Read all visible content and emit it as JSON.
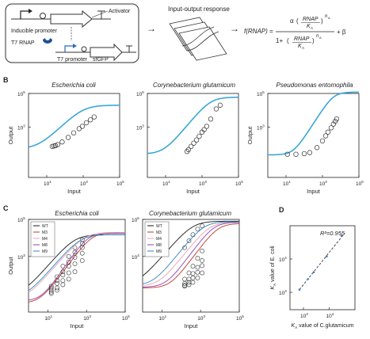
{
  "panel_a": {
    "circuit": {
      "activator_label": "Activator",
      "inducible_promoter_label": "Inducible promoter",
      "t7_rnap_label": "T7 RNAP",
      "t7_promoter_label": "T7 promoter",
      "reporter_label": "sfGFP"
    },
    "response_label": "Input-output response",
    "arrow_glyph": "→",
    "equation": {
      "lhs": "f(RNAP) =",
      "alpha": "α",
      "rnap": "RNAP",
      "ka": "K",
      "ka_sub": "A",
      "exp": "n",
      "exp_sub": "A",
      "open_paren": "(",
      "close_paren": ")",
      "one_plus": "1+",
      "plus_beta": "+ β"
    }
  },
  "colors": {
    "fit_line": "#3aa7d8",
    "circle": "#333333",
    "axis": "#222222",
    "dashed": "#333333",
    "scatter_point": "#3a7fd0",
    "promoter_blue": "#2b6cb0",
    "rnap_blue": "#1f4f9c"
  },
  "chart_data": [
    {
      "panel": "B1",
      "type": "scatter",
      "letter": "B",
      "title": "Escherichia coli",
      "xlabel": "Input",
      "ylabel": "Output",
      "xscale": "log",
      "yscale": "log",
      "xlim": [
        1,
        100000
      ],
      "ylim": [
        1,
        100000
      ],
      "x_ticks": [
        {
          "base": "10",
          "exp": "1"
        },
        {
          "base": "10",
          "exp": "3"
        },
        {
          "base": "10",
          "exp": "5"
        }
      ],
      "y_ticks": [
        {
          "base": "10",
          "exp": "3"
        },
        {
          "base": "10",
          "exp": "5"
        }
      ],
      "fit": {
        "alpha": 20000,
        "K": 1000,
        "n": 1.05,
        "beta": 50
      },
      "points": [
        [
          20,
          70
        ],
        [
          25,
          75
        ],
        [
          30,
          78
        ],
        [
          40,
          90
        ],
        [
          70,
          130
        ],
        [
          150,
          240
        ],
        [
          300,
          450
        ],
        [
          600,
          800
        ],
        [
          900,
          1100
        ],
        [
          1500,
          1800
        ],
        [
          2500,
          2700
        ],
        [
          4000,
          4000
        ]
      ]
    },
    {
      "panel": "B2",
      "type": "scatter",
      "title": "Corynebacterium glutamicum",
      "xlabel": "Input",
      "ylabel": "",
      "xscale": "log",
      "yscale": "log",
      "xlim": [
        1,
        100000
      ],
      "ylim": [
        1,
        100000
      ],
      "x_ticks": [
        {
          "base": "10",
          "exp": "1"
        },
        {
          "base": "10",
          "exp": "3"
        },
        {
          "base": "10",
          "exp": "5"
        }
      ],
      "y_ticks": [
        {
          "base": "10",
          "exp": "3"
        },
        {
          "base": "10",
          "exp": "5"
        }
      ],
      "fit": {
        "alpha": 60000,
        "K": 3000,
        "n": 1.3,
        "beta": 25
      },
      "points": [
        [
          150,
          35
        ],
        [
          180,
          45
        ],
        [
          250,
          70
        ],
        [
          350,
          110
        ],
        [
          500,
          170
        ],
        [
          700,
          280
        ],
        [
          1000,
          500
        ],
        [
          1300,
          700
        ],
        [
          1800,
          1100
        ],
        [
          3000,
          3000
        ],
        [
          6000,
          12000
        ],
        [
          10000,
          20000
        ]
      ]
    },
    {
      "panel": "B3",
      "type": "scatter",
      "title": "Pseudomonas entomophila",
      "xlabel": "Input",
      "ylabel": "Output",
      "xscale": "log",
      "yscale": "log",
      "xlim": [
        1,
        100000
      ],
      "ylim": [
        1,
        100000
      ],
      "x_ticks": [
        {
          "base": "10",
          "exp": "1"
        },
        {
          "base": "10",
          "exp": "3"
        },
        {
          "base": "10",
          "exp": "5"
        }
      ],
      "y_ticks": [
        {
          "base": "10",
          "exp": "3"
        },
        {
          "base": "10",
          "exp": "5"
        }
      ],
      "fit": {
        "alpha": 120000,
        "K": 4000,
        "n": 1.7,
        "beta": 22
      },
      "points": [
        [
          12,
          24
        ],
        [
          35,
          24
        ],
        [
          100,
          26
        ],
        [
          200,
          30
        ],
        [
          500,
          60
        ],
        [
          1000,
          150
        ],
        [
          1500,
          300
        ],
        [
          2000,
          500
        ],
        [
          3000,
          900
        ],
        [
          4000,
          1500
        ],
        [
          5000,
          2200
        ],
        [
          6000,
          3000
        ]
      ]
    },
    {
      "panel": "C1",
      "type": "scatter",
      "letter": "C",
      "title": "Escherichia coli",
      "xlabel": "Input",
      "ylabel": "Output",
      "xscale": "log",
      "yscale": "log",
      "xlim": [
        1,
        100000
      ],
      "ylim": [
        1,
        100000
      ],
      "x_ticks": [
        {
          "base": "10",
          "exp": "1"
        },
        {
          "base": "10",
          "exp": "3"
        },
        {
          "base": "10",
          "exp": "5"
        }
      ],
      "y_ticks": [
        {
          "base": "10",
          "exp": "3"
        },
        {
          "base": "10",
          "exp": "5"
        }
      ],
      "legend": [
        "WT",
        "M3",
        "M4",
        "M8",
        "M9"
      ],
      "series": [
        {
          "name": "WT",
          "color": "#1a1a1a",
          "fit": {
            "alpha": 15000,
            "K": 250,
            "n": 1.2,
            "beta": 8
          },
          "points": [
            [
              15,
              25
            ],
            [
              30,
              80
            ],
            [
              60,
              300
            ],
            [
              120,
              1000
            ],
            [
              250,
              3000
            ],
            [
              600,
              8000
            ]
          ]
        },
        {
          "name": "M3",
          "color": "#c0392b",
          "fit": {
            "alpha": 20000,
            "K": 2000,
            "n": 1.4,
            "beta": 3
          },
          "points": [
            [
              15,
              10
            ],
            [
              30,
              15
            ],
            [
              60,
              30
            ],
            [
              120,
              60
            ],
            [
              250,
              150
            ],
            [
              600,
              600
            ]
          ]
        },
        {
          "name": "M4",
          "color": "#e8a1b3",
          "fit": {
            "alpha": 20000,
            "K": 800,
            "n": 1.2,
            "beta": 5
          },
          "points": [
            [
              15,
              15
            ],
            [
              30,
              35
            ],
            [
              60,
              100
            ],
            [
              120,
              300
            ],
            [
              250,
              900
            ],
            [
              600,
              3000
            ]
          ]
        },
        {
          "name": "M8",
          "color": "#8e44ad",
          "fit": {
            "alpha": 18000,
            "K": 1200,
            "n": 1.5,
            "beta": 4
          },
          "points": [
            [
              15,
              12
            ],
            [
              30,
              20
            ],
            [
              60,
              50
            ],
            [
              120,
              130
            ],
            [
              250,
              400
            ],
            [
              600,
              1500
            ]
          ]
        },
        {
          "name": "M9",
          "color": "#2e86c1",
          "fit": {
            "alpha": 15000,
            "K": 500,
            "n": 1.2,
            "beta": 6
          },
          "points": [
            [
              15,
              20
            ],
            [
              30,
              50
            ],
            [
              60,
              150
            ],
            [
              120,
              500
            ],
            [
              250,
              1700
            ],
            [
              600,
              5000
            ]
          ]
        }
      ]
    },
    {
      "panel": "C2",
      "type": "scatter",
      "title": "Corynebacterium glutamicum",
      "xlabel": "Input",
      "ylabel": "",
      "xscale": "log",
      "yscale": "log",
      "xlim": [
        1,
        100000
      ],
      "ylim": [
        1,
        100000
      ],
      "x_ticks": [
        {
          "base": "10",
          "exp": "1"
        },
        {
          "base": "10",
          "exp": "3"
        },
        {
          "base": "10",
          "exp": "5"
        }
      ],
      "y_ticks": [
        {
          "base": "10",
          "exp": "3"
        },
        {
          "base": "10",
          "exp": "5"
        }
      ],
      "legend": [
        "WT",
        "M3",
        "M4",
        "M8",
        "M9"
      ],
      "series": [
        {
          "name": "WT",
          "color": "#1a1a1a",
          "fit": {
            "alpha": 80000,
            "K": 400,
            "n": 1.2,
            "beta": 30
          },
          "points": [
            [
              150,
              3000
            ],
            [
              250,
              7000
            ],
            [
              400,
              15000
            ],
            [
              700,
              30000
            ],
            [
              1200,
              45000
            ]
          ]
        },
        {
          "name": "M3",
          "color": "#c0392b",
          "fit": {
            "alpha": 60000,
            "K": 8000,
            "n": 1.4,
            "beta": 20
          },
          "points": [
            [
              150,
              25
            ],
            [
              250,
              30
            ],
            [
              400,
              40
            ],
            [
              700,
              70
            ],
            [
              1200,
              130
            ]
          ]
        },
        {
          "name": "M4",
          "color": "#e8a1b3",
          "fit": {
            "alpha": 70000,
            "K": 3000,
            "n": 1.3,
            "beta": 25
          },
          "points": [
            [
              150,
              35
            ],
            [
              250,
              60
            ],
            [
              400,
              120
            ],
            [
              700,
              260
            ],
            [
              1200,
              600
            ]
          ]
        },
        {
          "name": "M8",
          "color": "#8e44ad",
          "fit": {
            "alpha": 70000,
            "K": 5000,
            "n": 1.4,
            "beta": 22
          },
          "points": [
            [
              150,
              28
            ],
            [
              250,
              40
            ],
            [
              400,
              70
            ],
            [
              700,
              140
            ],
            [
              1200,
              320
            ]
          ]
        },
        {
          "name": "M9",
          "color": "#2e86c1",
          "fit": {
            "alpha": 75000,
            "K": 1500,
            "n": 1.3,
            "beta": 28
          },
          "points": [
            [
              150,
              60
            ],
            [
              250,
              130
            ],
            [
              400,
              300
            ],
            [
              700,
              800
            ],
            [
              1200,
              2000
            ]
          ]
        }
      ]
    },
    {
      "panel": "D",
      "type": "scatter",
      "letter": "D",
      "title": "",
      "annotation": "R²=0.955",
      "xlabel_parts": [
        "K",
        "A",
        " value of C.glutamicum"
      ],
      "ylabel_parts": [
        "K",
        "A",
        " value of E. coli"
      ],
      "xscale": "log",
      "yscale": "log",
      "xlim": [
        300,
        100000
      ],
      "ylim": [
        300,
        100000
      ],
      "x_ticks": [
        {
          "base": "10",
          "exp": "3"
        },
        {
          "base": "10",
          "exp": "4"
        }
      ],
      "y_ticks": [
        {
          "base": "10",
          "exp": "3"
        },
        {
          "base": "10",
          "exp": "4"
        }
      ],
      "points": [
        [
          700,
          1200
        ],
        [
          1500,
          2500
        ],
        [
          2500,
          4000
        ],
        [
          8000,
          12000
        ],
        [
          30000,
          50000
        ]
      ],
      "trend_endpoints": [
        [
          700,
          1200
        ],
        [
          40000,
          60000
        ]
      ]
    }
  ]
}
